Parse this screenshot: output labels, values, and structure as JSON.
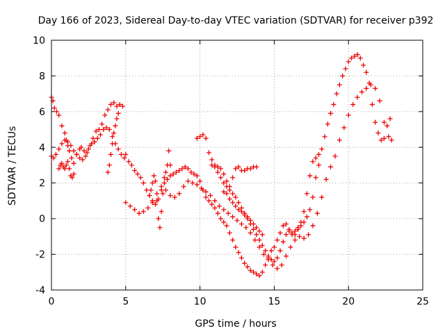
{
  "chart_data": {
    "type": "scatter",
    "title": "Day 166 of 2023, Sidereal Day-to-day VTEC variation (SDTVAR) for receiver p392",
    "xlabel": "GPS time / hours",
    "ylabel": "SDTVAR / TECUs",
    "xlim": [
      0,
      25
    ],
    "ylim": [
      -4,
      10
    ],
    "xticks": [
      "0",
      "5",
      "10",
      "15",
      "20",
      "25"
    ],
    "yticks": [
      "-4",
      "-2",
      "0",
      "2",
      "4",
      "6",
      "8",
      "10"
    ],
    "grid": true,
    "marker": "+",
    "color": "#ee0000",
    "series": [
      {
        "x": [
          0.0,
          0.1,
          0.2,
          0.35,
          0.5,
          0.7,
          0.9,
          1.0,
          1.1,
          1.2,
          1.35,
          1.5,
          1.7,
          1.9,
          2.0,
          2.2,
          2.4,
          2.6,
          2.8,
          3.0,
          3.2,
          3.4,
          3.6,
          3.8,
          4.0,
          4.2,
          4.4,
          4.6,
          4.8,
          5.0,
          5.2,
          5.4,
          5.6,
          5.8,
          6.0,
          6.2,
          6.4,
          6.6,
          6.8,
          7.0,
          7.2,
          7.4,
          7.6,
          7.8,
          8.0,
          8.2,
          8.4,
          8.6,
          8.8,
          9.0,
          9.2,
          9.4,
          9.6,
          9.8,
          10.0,
          10.2,
          10.4,
          10.6,
          10.8,
          11.0,
          11.2,
          11.4,
          11.6,
          11.8,
          12.0,
          12.2,
          12.4,
          12.6,
          12.8,
          13.0,
          13.2,
          13.4,
          13.6,
          13.8,
          14.0,
          14.2,
          14.4,
          14.6,
          14.8,
          15.0,
          15.2,
          15.4,
          15.6,
          15.8,
          16.0,
          16.2,
          16.4,
          16.6,
          16.8,
          17.0,
          17.2,
          17.4,
          17.6,
          17.8,
          18.0,
          18.2,
          18.4,
          18.6,
          18.8,
          19.0,
          19.2,
          19.4,
          19.6,
          19.8,
          20.0,
          20.2,
          20.4,
          20.6,
          20.8,
          21.0,
          21.2,
          21.4,
          21.6,
          21.8,
          22.0,
          22.2,
          22.4,
          22.6,
          22.8
        ],
        "y": [
          6.8,
          6.6,
          6.2,
          6.0,
          5.8,
          5.2,
          4.8,
          4.4,
          4.1,
          3.8,
          3.4,
          3.1,
          3.6,
          3.9,
          4.0,
          3.8,
          3.7,
          4.1,
          4.5,
          4.9,
          5.0,
          5.3,
          5.8,
          6.1,
          6.4,
          6.5,
          6.3,
          6.4,
          6.3,
          3.6,
          3.2,
          3.0,
          2.7,
          2.5,
          2.3,
          2.0,
          1.6,
          1.3,
          1.0,
          0.8,
          1.1,
          1.6,
          2.0,
          2.2,
          2.4,
          2.5,
          2.6,
          2.7,
          2.8,
          2.9,
          2.8,
          2.6,
          2.5,
          2.4,
          2.1,
          1.6,
          1.2,
          1.0,
          0.8,
          0.6,
          0.3,
          0.0,
          -0.2,
          -0.4,
          -0.8,
          -1.2,
          -1.6,
          -1.9,
          -2.2,
          -2.5,
          -2.7,
          -2.9,
          -3.0,
          -3.1,
          -3.2,
          -3.0,
          -2.6,
          -2.2,
          -1.8,
          -1.6,
          -1.2,
          -0.8,
          -0.4,
          -0.3,
          -0.6,
          -0.9,
          -0.9,
          -0.6,
          -0.2,
          0.4,
          1.4,
          2.4,
          3.2,
          3.4,
          3.6,
          3.9,
          4.6,
          5.3,
          5.9,
          6.4,
          7.0,
          7.5,
          8.0,
          8.4,
          8.8,
          9.0,
          9.1,
          9.2,
          9.0,
          8.6,
          8.2,
          7.6,
          6.4,
          5.4,
          4.8,
          4.4,
          4.5,
          5.2,
          5.6
        ]
      },
      {
        "x": [
          0.0,
          0.15,
          0.3,
          0.5,
          0.7,
          0.9,
          1.1,
          1.3,
          1.5,
          1.7,
          1.9,
          2.1,
          2.3,
          2.5,
          2.7,
          2.9,
          3.1,
          3.3,
          3.5,
          3.7,
          3.9,
          4.1,
          4.3,
          4.5,
          4.7,
          4.9,
          5.0,
          5.3,
          5.6,
          5.9,
          6.2,
          6.5,
          6.8,
          7.1,
          7.4,
          7.7,
          8.0,
          8.3,
          8.6,
          8.9,
          9.2,
          9.5,
          9.8,
          10.1,
          10.4,
          10.7,
          11.0,
          11.3,
          11.6,
          11.9,
          12.2,
          12.5,
          12.8,
          13.1,
          13.4,
          13.7,
          14.0,
          14.3,
          14.6,
          14.9,
          15.2,
          15.5,
          15.8,
          16.1,
          16.4,
          16.7,
          17.0,
          17.3,
          17.6,
          17.9,
          18.2,
          18.5,
          18.8,
          19.1,
          19.4,
          19.7,
          20.0,
          20.3,
          20.6,
          20.9,
          21.2,
          21.5,
          21.8,
          22.1,
          22.4,
          22.7,
          22.9
        ],
        "y": [
          3.5,
          3.4,
          3.6,
          3.9,
          4.2,
          4.4,
          4.3,
          4.1,
          3.8,
          3.6,
          3.4,
          3.3,
          3.5,
          3.9,
          4.2,
          4.3,
          4.5,
          4.7,
          5.0,
          5.1,
          5.0,
          4.6,
          4.2,
          3.9,
          3.6,
          3.4,
          0.9,
          0.7,
          0.5,
          0.3,
          0.4,
          0.6,
          0.9,
          1.4,
          1.8,
          1.6,
          1.3,
          1.2,
          1.4,
          1.8,
          2.1,
          2.0,
          1.9,
          1.7,
          1.5,
          1.3,
          1.0,
          0.7,
          0.5,
          0.3,
          0.1,
          -0.1,
          -0.3,
          -0.5,
          -0.8,
          -1.2,
          -1.6,
          -2.0,
          -2.3,
          -2.6,
          -2.8,
          -2.6,
          -2.1,
          -1.6,
          -1.2,
          -1.0,
          -1.1,
          -0.9,
          -0.4,
          0.3,
          1.2,
          2.2,
          2.9,
          3.5,
          4.4,
          5.1,
          5.8,
          6.4,
          6.8,
          7.1,
          7.3,
          7.5,
          7.3,
          6.6,
          5.4,
          4.6,
          4.4
        ]
      },
      {
        "x": [
          9.8,
          10.0,
          10.2,
          10.4,
          10.6,
          10.8,
          11.0,
          11.2,
          11.4,
          11.6,
          11.8,
          12.0,
          12.2,
          12.4,
          12.6,
          12.8,
          13.0,
          13.2,
          13.4,
          13.6,
          13.8,
          14.0,
          14.2,
          14.4,
          14.6,
          14.8,
          15.0,
          15.2,
          15.4,
          15.6,
          15.8,
          16.0,
          16.2,
          16.4,
          16.6,
          16.8,
          17.0,
          17.2,
          17.4,
          17.6,
          17.8,
          18.0
        ],
        "y": [
          4.5,
          4.6,
          4.7,
          4.5,
          3.7,
          3.3,
          2.9,
          2.6,
          2.3,
          2.0,
          1.8,
          1.6,
          1.4,
          1.2,
          0.9,
          0.6,
          0.3,
          0.0,
          -0.3,
          -0.6,
          -0.9,
          -1.2,
          -1.5,
          -1.8,
          -2.1,
          -2.3,
          -2.4,
          -2.2,
          -1.8,
          -1.3,
          -0.9,
          -0.7,
          -0.8,
          -0.7,
          -0.5,
          -0.4,
          -0.2,
          0.1,
          0.5,
          1.2,
          2.3,
          3.0
        ]
      },
      {
        "x": [
          13.8,
          13.6,
          13.4,
          13.2,
          13.0,
          12.8,
          12.6,
          12.4,
          12.2,
          12.0,
          11.8,
          11.6,
          11.4,
          11.2,
          11.0,
          10.8
        ],
        "y": [
          2.9,
          2.9,
          2.8,
          2.8,
          2.7,
          2.7,
          2.9,
          2.8,
          2.3,
          1.8,
          2.1,
          2.5,
          2.8,
          2.9,
          3.0,
          3.0
        ]
      },
      {
        "x": [
          0.5,
          0.6,
          0.7,
          0.8,
          0.9,
          1.0,
          1.1,
          1.2,
          1.3,
          1.4,
          1.5
        ],
        "y": [
          2.8,
          3.0,
          3.1,
          2.9,
          2.8,
          3.0,
          3.2,
          2.8,
          2.4,
          2.3,
          2.5
        ]
      },
      {
        "x": [
          6.6,
          6.7,
          6.8,
          6.9,
          7.0,
          7.1,
          7.2,
          7.3,
          7.4,
          7.5,
          7.6,
          7.7,
          7.8,
          7.9,
          8.0
        ],
        "y": [
          1.3,
          1.6,
          2.0,
          2.4,
          2.1,
          1.0,
          0.0,
          -0.5,
          0.4,
          1.4,
          2.3,
          2.6,
          3.0,
          3.8,
          3.0
        ]
      },
      {
        "x": [
          11.6,
          11.8,
          12.0,
          12.2,
          12.4,
          12.6,
          12.8,
          13.0,
          13.2,
          13.4,
          13.6,
          13.8,
          14.0,
          14.2
        ],
        "y": [
          1.5,
          1.4,
          1.1,
          0.9,
          0.7,
          0.5,
          0.4,
          0.2,
          0.1,
          -0.1,
          -0.3,
          -0.5,
          -0.7,
          -0.9
        ]
      },
      {
        "x": [
          3.8,
          3.9,
          4.0,
          4.1,
          4.2,
          4.3,
          4.4,
          4.5
        ],
        "y": [
          2.6,
          3.0,
          3.6,
          4.2,
          4.8,
          5.2,
          5.6,
          5.9
        ]
      }
    ]
  }
}
